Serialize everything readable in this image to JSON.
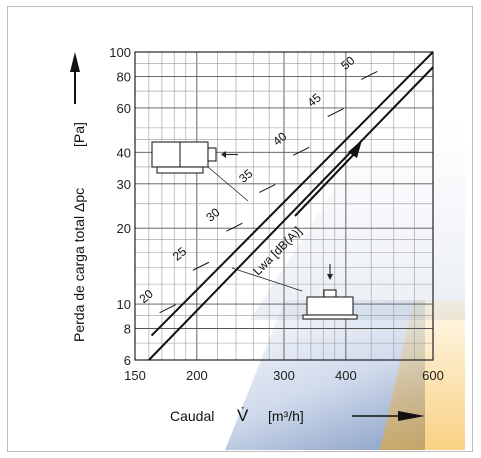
{
  "chart_data": {
    "type": "line",
    "xscale": "log",
    "yscale": "log",
    "xlim": [
      150,
      600
    ],
    "ylim": [
      6,
      100
    ],
    "xticks": [
      150,
      200,
      300,
      400,
      600
    ],
    "xtick_labels": [
      "150",
      "200",
      "300",
      "400",
      "600"
    ],
    "yticks": [
      6,
      8,
      10,
      20,
      30,
      40,
      60,
      80,
      100
    ],
    "ytick_labels": [
      "6",
      "8",
      "10",
      "20",
      "30",
      "40",
      "60",
      "80",
      "100"
    ],
    "xlabel": "Caudal",
    "xlabel_symbol": "V̇",
    "xlabel_unit": "[m³/h]",
    "ylabel": "Perda de carga total Δpc",
    "ylabel_unit": "[Pa]",
    "grid": true,
    "series": [
      {
        "x": [
          162,
          600
        ],
        "y": [
          7.5,
          100
        ]
      },
      {
        "x": [
          160,
          600
        ],
        "y": [
          6,
          87
        ]
      }
    ],
    "lwa": {
      "label": "Lwa [dB(A)]",
      "marks": [
        {
          "label": "20",
          "x": 173,
          "y": 9.5
        },
        {
          "label": "25",
          "x": 202,
          "y": 14
        },
        {
          "label": "30",
          "x": 236,
          "y": 20
        },
        {
          "label": "35",
          "x": 275,
          "y": 28.5
        },
        {
          "label": "40",
          "x": 322,
          "y": 40
        },
        {
          "label": "45",
          "x": 378,
          "y": 57
        },
        {
          "label": "50",
          "x": 442,
          "y": 80
        }
      ]
    }
  }
}
